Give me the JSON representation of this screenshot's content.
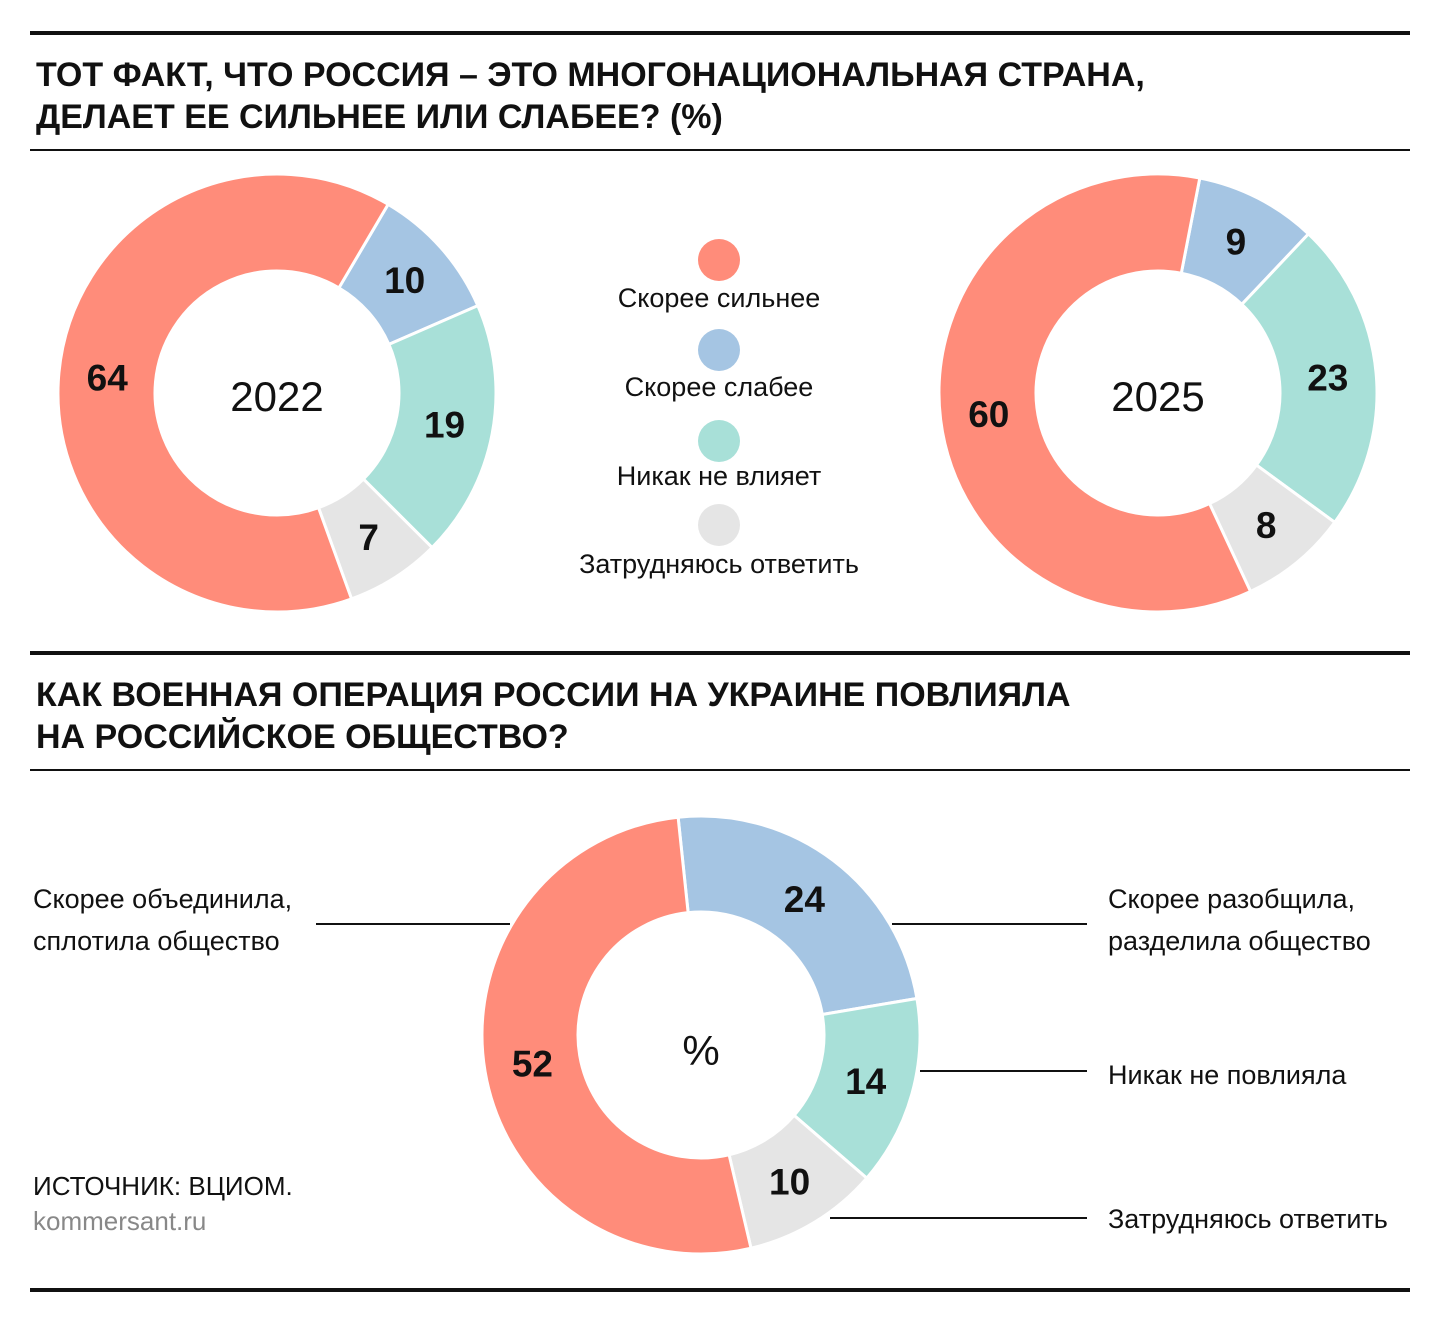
{
  "colors": {
    "strong": "#ff8c7a",
    "weak": "#a5c5e3",
    "none": "#a8e0d8",
    "unsure": "#e5e5e5"
  },
  "section1": {
    "title_line1": "ТОТ ФАКТ, ЧТО РОССИЯ – ЭТО МНОГОНАЦИОНАЛЬНАЯ СТРАНА,",
    "title_line2": "ДЕЛАЕТ ЕЕ СИЛЬНЕЕ ИЛИ СЛАБЕЕ? (%)",
    "legend": [
      "Скорее сильнее",
      "Скорее слабее",
      "Никак не влияет",
      "Затрудняюсь ответить"
    ]
  },
  "section2": {
    "title_line1": "КАК ВОЕННАЯ ОПЕРАЦИЯ РОССИИ НА УКРАИНЕ ПОВЛИЯЛА",
    "title_line2": "НА РОССИЙСКОЕ ОБЩЕСТВО?",
    "labels": {
      "united_1": "Скорее объединила,",
      "united_2": "сплотила общество",
      "divided_1": "Скорее разобщила,",
      "divided_2": "разделила общество",
      "none": "Никак не повлияла",
      "unsure": "Затрудняюсь ответить"
    }
  },
  "footer": {
    "source": "ИСТОЧНИК: ВЦИОМ.",
    "site": "kommersant.ru"
  },
  "chart_data": [
    {
      "type": "pie",
      "title": "2022",
      "categories": [
        "Скорее сильнее",
        "Скорее слабее",
        "Никак не влияет",
        "Затрудняюсь ответить"
      ],
      "values": [
        64,
        10,
        19,
        7
      ],
      "unit": "%"
    },
    {
      "type": "pie",
      "title": "2025",
      "categories": [
        "Скорее сильнее",
        "Скорее слабее",
        "Никак не влияет",
        "Затрудняюсь ответить"
      ],
      "values": [
        60,
        9,
        23,
        8
      ],
      "unit": "%"
    },
    {
      "type": "pie",
      "title": "%",
      "categories": [
        "Скорее объединила, сплотила общество",
        "Скорее разобщила, разделила общество",
        "Никак не повлияла",
        "Затрудняюсь ответить"
      ],
      "values": [
        52,
        24,
        14,
        10
      ],
      "unit": "%"
    }
  ]
}
